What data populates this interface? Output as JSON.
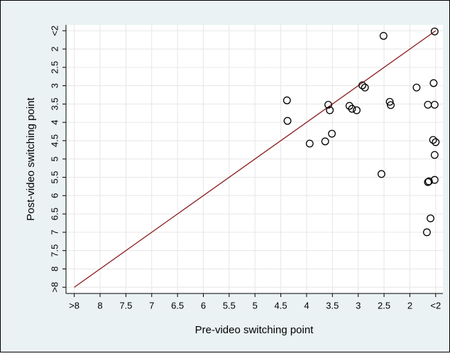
{
  "chart_data": {
    "type": "scatter",
    "x_label": "Pre-video switching point",
    "y_label": "Post-video switching point",
    "x": [
      1.52,
      2.51,
      1.54,
      2.92,
      2.87,
      1.87,
      4.38,
      2.39,
      2.37,
      3.58,
      3.55,
      3.17,
      3.12,
      3.03,
      1.65,
      1.52,
      4.37,
      3.51,
      1.55,
      1.5,
      3.94,
      3.64,
      1.52,
      2.55,
      1.52,
      1.63,
      1.65,
      1.6,
      1.67
    ],
    "y": [
      1.52,
      1.64,
      2.93,
      2.99,
      3.05,
      3.05,
      3.4,
      3.44,
      3.53,
      3.52,
      3.67,
      3.55,
      3.63,
      3.67,
      3.52,
      3.52,
      3.96,
      4.31,
      4.48,
      4.54,
      4.58,
      4.52,
      4.89,
      5.41,
      5.57,
      5.61,
      5.63,
      6.62,
      7.0
    ],
    "marker_color": "#000000",
    "reference_line": {
      "x": [
        8.5,
        1.5
      ],
      "y": [
        8.5,
        1.5
      ],
      "color": "#8b1a1a"
    },
    "xlim": [
      8.66,
      1.36
    ],
    "ylim": [
      1.34,
      8.67
    ],
    "xticks": [
      {
        "value": 8.5,
        "label": ">8"
      },
      8,
      7.5,
      7,
      6.5,
      6,
      5.5,
      5,
      4.5,
      4,
      3.5,
      3,
      2.5,
      2,
      {
        "value": 1.5,
        "label": "<2"
      }
    ],
    "yticks": [
      {
        "value": 1.5,
        "label": "<2"
      },
      2,
      2.5,
      3,
      3.5,
      4,
      4.5,
      5,
      5.5,
      6,
      6.5,
      7,
      7.5,
      8,
      {
        "value": 8.5,
        "label": ">8"
      }
    ],
    "grid": true
  }
}
